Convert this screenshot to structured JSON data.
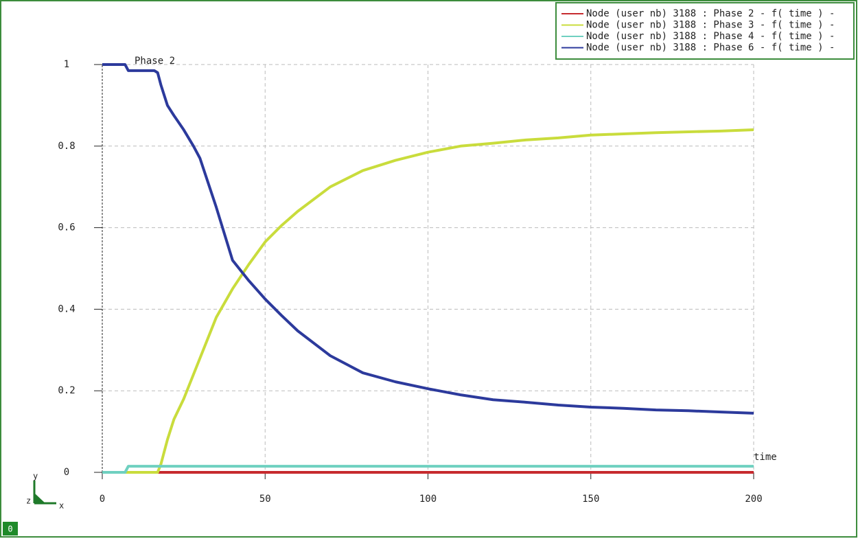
{
  "chart_data": {
    "type": "line",
    "y_label": "Phase  2",
    "x_label": "time",
    "x": [
      0,
      5,
      7,
      8,
      15,
      16,
      17,
      18,
      20,
      22,
      25,
      28,
      30,
      35,
      40,
      45,
      50,
      55,
      60,
      70,
      80,
      90,
      100,
      110,
      120,
      130,
      140,
      150,
      160,
      170,
      180,
      190,
      200
    ],
    "series": [
      {
        "name": "Node (user nb) 3188 : Phase  2 - f( time ) -",
        "color": "#c62a2e",
        "values": [
          null,
          null,
          null,
          null,
          null,
          0,
          0,
          0,
          0,
          0,
          0,
          0,
          0,
          0,
          0,
          0,
          0,
          0,
          0,
          0,
          0,
          0,
          0,
          0,
          0,
          0,
          0,
          0,
          0,
          0,
          0,
          0,
          0
        ]
      },
      {
        "name": "Node (user nb) 3188 : Phase  3 - f( time ) -",
        "color": "#c9dc3c",
        "values": [
          null,
          null,
          0,
          0,
          0,
          0,
          0,
          0.02,
          0.08,
          0.13,
          0.18,
          0.24,
          0.28,
          0.38,
          0.45,
          0.51,
          0.565,
          0.605,
          0.64,
          0.7,
          0.74,
          0.765,
          0.785,
          0.8,
          0.807,
          0.815,
          0.82,
          0.827,
          0.83,
          0.833,
          0.835,
          0.837,
          0.84
        ]
      },
      {
        "name": "Node (user nb) 3188 : Phase  4 - f( time ) -",
        "color": "#6fd0c0",
        "values": [
          0,
          0,
          0,
          0.015,
          0.015,
          0.015,
          0.015,
          0.015,
          0.015,
          0.015,
          0.015,
          0.015,
          0.015,
          0.015,
          0.015,
          0.015,
          0.015,
          0.015,
          0.015,
          0.015,
          0.015,
          0.015,
          0.015,
          0.015,
          0.015,
          0.015,
          0.015,
          0.015,
          0.015,
          0.015,
          0.015,
          0.015,
          0.015
        ]
      },
      {
        "name": "Node (user nb) 3188 : Phase  6 - f( time ) -",
        "color": "#2c3a9c",
        "values": [
          1,
          1,
          1,
          0.985,
          0.985,
          0.985,
          0.98,
          0.95,
          0.9,
          0.875,
          0.84,
          0.8,
          0.77,
          0.65,
          0.52,
          0.47,
          0.425,
          0.385,
          0.347,
          0.286,
          0.244,
          0.222,
          0.205,
          0.19,
          0.178,
          0.172,
          0.165,
          0.16,
          0.157,
          0.153,
          0.151,
          0.148,
          0.145
        ]
      }
    ],
    "xlim": [
      0,
      200
    ],
    "xticks": [
      0,
      50,
      100,
      150,
      200
    ],
    "ylim": [
      0,
      1
    ],
    "yticks": [
      0,
      0.2,
      0.4,
      0.6,
      0.8,
      1
    ],
    "grid": true
  },
  "triad": {
    "y": "y",
    "z": "z",
    "x": "x"
  },
  "badge": "0"
}
